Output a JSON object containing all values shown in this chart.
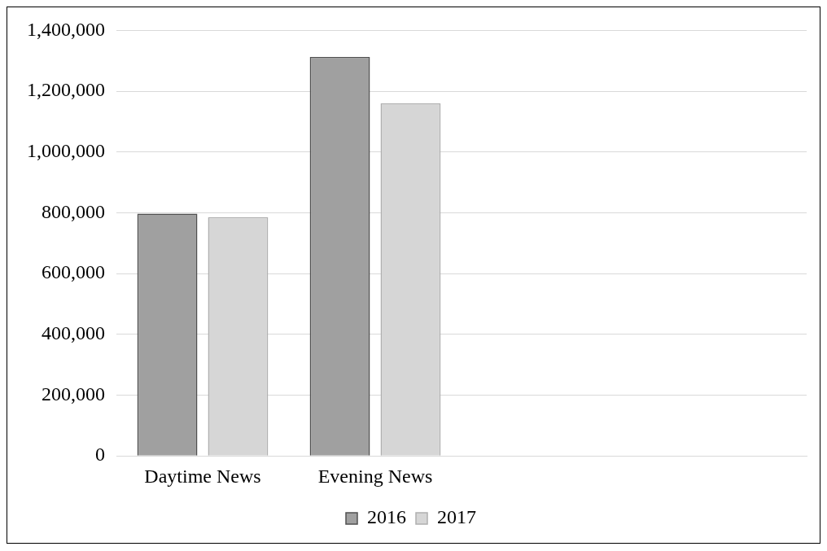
{
  "chart_data": {
    "type": "bar",
    "categories": [
      "Daytime News",
      "Evening News",
      null,
      null
    ],
    "series": [
      {
        "name": "2016",
        "color": "#a0a0a0",
        "values": [
          797000,
          1313000,
          null,
          null
        ]
      },
      {
        "name": "2017",
        "color": "#d6d6d6",
        "values": [
          786000,
          1160000,
          null,
          null
        ]
      }
    ],
    "ylim": [
      0,
      1400000
    ],
    "yticks": [
      {
        "value": 0,
        "label": "0"
      },
      {
        "value": 200000,
        "label": "200,000"
      },
      {
        "value": 400000,
        "label": "400,000"
      },
      {
        "value": 600000,
        "label": "600,000"
      },
      {
        "value": 800000,
        "label": "800,000"
      },
      {
        "value": 1000000,
        "label": "1,000,000"
      },
      {
        "value": 1200000,
        "label": "1,200,000"
      },
      {
        "value": 1400000,
        "label": "1,400,000"
      }
    ],
    "grid": "y",
    "legend": "bottom"
  }
}
